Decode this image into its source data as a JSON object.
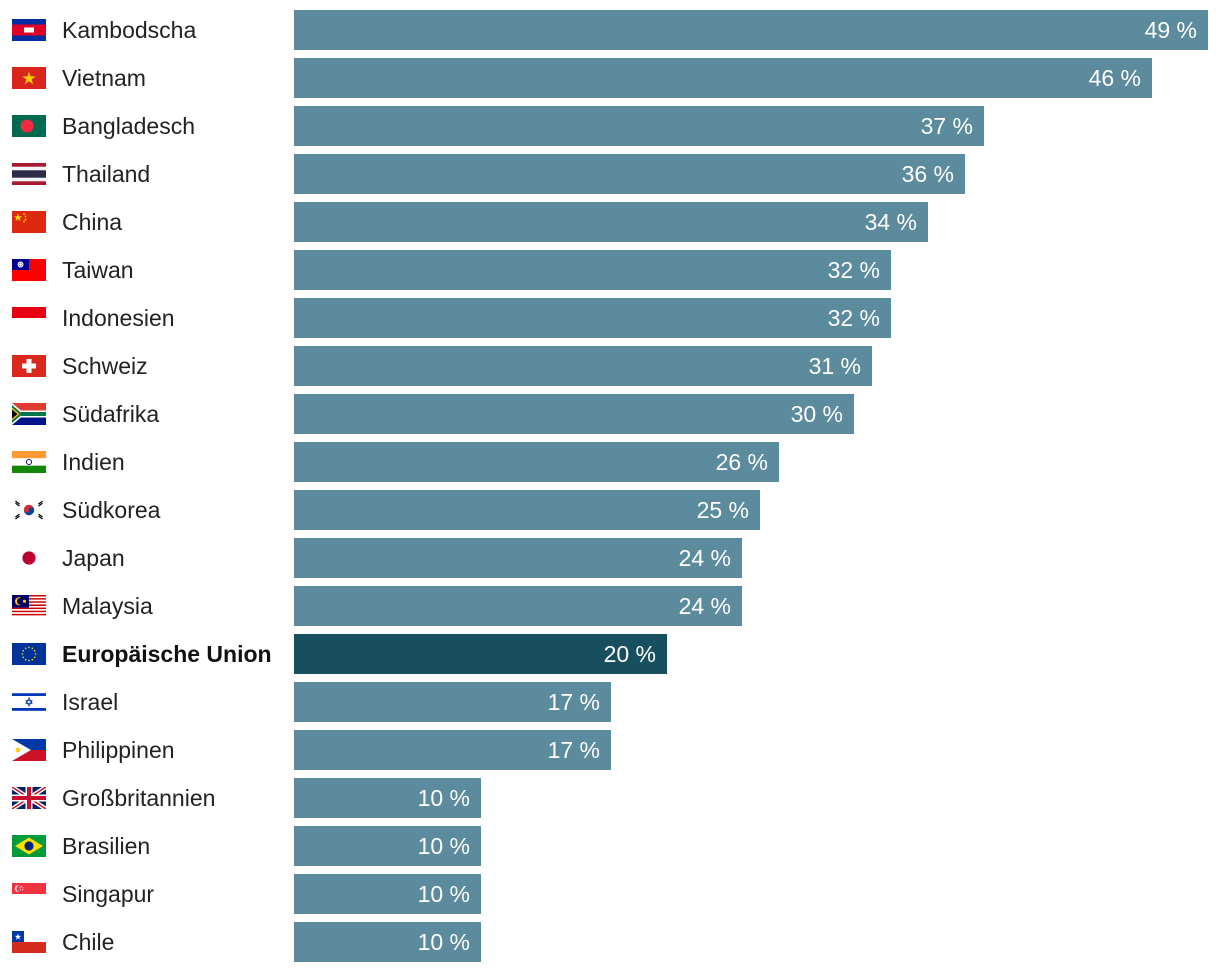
{
  "chart_data": {
    "type": "bar",
    "orientation": "horizontal",
    "unit": "%",
    "xlim": [
      0,
      49
    ],
    "colors": {
      "bar": "#5b8b9c",
      "highlight": "#174f5e"
    },
    "highlight": "Europäische Union",
    "rows": [
      {
        "label": "Kambodscha",
        "value": 49,
        "value_label": "49 %",
        "flag": "cambodia-flag-icon"
      },
      {
        "label": "Vietnam",
        "value": 46,
        "value_label": "46 %",
        "flag": "vietnam-flag-icon"
      },
      {
        "label": "Bangladesch",
        "value": 37,
        "value_label": "37 %",
        "flag": "bangladesh-flag-icon"
      },
      {
        "label": "Thailand",
        "value": 36,
        "value_label": "36 %",
        "flag": "thailand-flag-icon"
      },
      {
        "label": "China",
        "value": 34,
        "value_label": "34 %",
        "flag": "china-flag-icon"
      },
      {
        "label": "Taiwan",
        "value": 32,
        "value_label": "32 %",
        "flag": "taiwan-flag-icon"
      },
      {
        "label": "Indonesien",
        "value": 32,
        "value_label": "32 %",
        "flag": "indonesia-flag-icon"
      },
      {
        "label": "Schweiz",
        "value": 31,
        "value_label": "31 %",
        "flag": "switzerland-flag-icon"
      },
      {
        "label": "Südafrika",
        "value": 30,
        "value_label": "30 %",
        "flag": "south-africa-flag-icon"
      },
      {
        "label": "Indien",
        "value": 26,
        "value_label": "26 %",
        "flag": "india-flag-icon"
      },
      {
        "label": "Südkorea",
        "value": 25,
        "value_label": "25 %",
        "flag": "south-korea-flag-icon"
      },
      {
        "label": "Japan",
        "value": 24,
        "value_label": "24 %",
        "flag": "japan-flag-icon"
      },
      {
        "label": "Malaysia",
        "value": 24,
        "value_label": "24 %",
        "flag": "malaysia-flag-icon"
      },
      {
        "label": "Europäische Union",
        "value": 20,
        "value_label": "20 %",
        "flag": "eu-flag-icon"
      },
      {
        "label": "Israel",
        "value": 17,
        "value_label": "17 %",
        "flag": "israel-flag-icon"
      },
      {
        "label": "Philippinen",
        "value": 17,
        "value_label": "17 %",
        "flag": "philippines-flag-icon"
      },
      {
        "label": "Großbritannien",
        "value": 10,
        "value_label": "10 %",
        "flag": "uk-flag-icon"
      },
      {
        "label": "Brasilien",
        "value": 10,
        "value_label": "10 %",
        "flag": "brazil-flag-icon"
      },
      {
        "label": "Singapur",
        "value": 10,
        "value_label": "10 %",
        "flag": "singapore-flag-icon"
      },
      {
        "label": "Chile",
        "value": 10,
        "value_label": "10 %",
        "flag": "chile-flag-icon"
      }
    ]
  }
}
